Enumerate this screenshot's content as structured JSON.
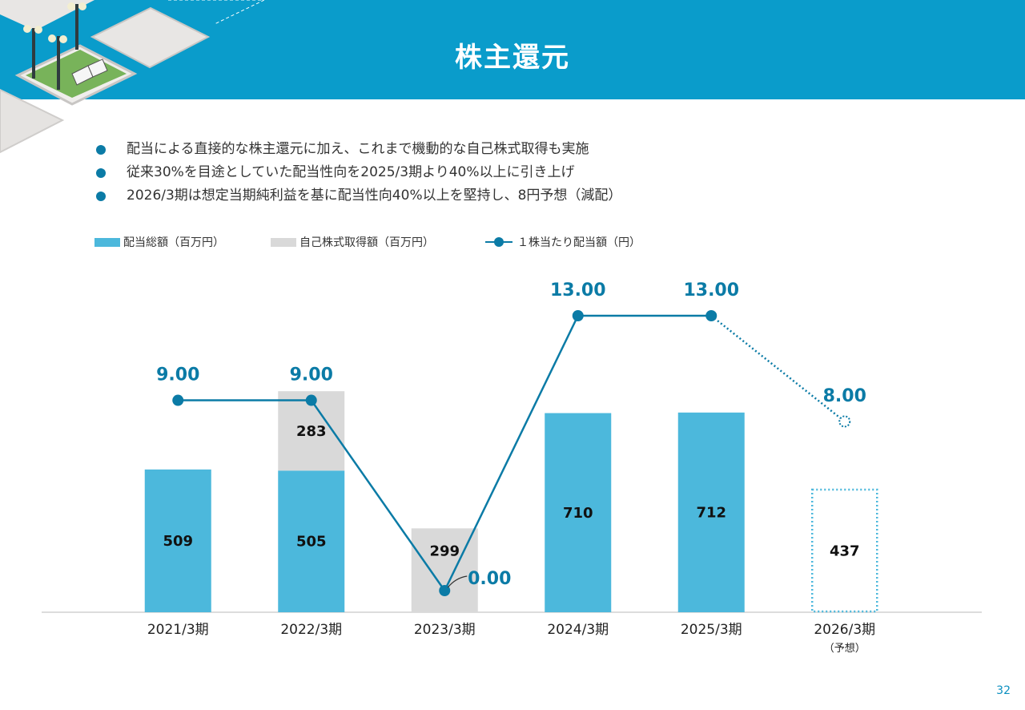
{
  "header": {
    "title": "株主還元"
  },
  "bullets": [
    "配当による直接的な株主還元に加え、これまで機動的な自己株式取得も実施",
    "従来30%を目途としていた配当性向を2025/3期より40%以上に引き上げ",
    "2026/3期は想定当期純利益を基に配当性向40%以上を堅持し、8円予想（減配）"
  ],
  "legend": {
    "dividend_total": "配当総額（百万円）",
    "buyback": "自己株式取得額（百万円）",
    "dps": "１株当たり配当額（円）"
  },
  "colors": {
    "header": "#0a9ccb",
    "dividend_bar": "#4cb8dc",
    "buyback_bar": "#d9d9d9",
    "dps_line": "#0b7ba6",
    "dps_label": "#0b7ba6"
  },
  "chart_data": {
    "type": "bar",
    "stacked": true,
    "categories": [
      "2021/3期",
      "2022/3期",
      "2023/3期",
      "2024/3期",
      "2025/3期",
      "2026/3期"
    ],
    "category_sublabels": [
      "",
      "",
      "",
      "",
      "",
      "（予想）"
    ],
    "series": [
      {
        "name": "配当総額（百万円）",
        "type": "bar",
        "values": [
          509,
          505,
          0,
          710,
          712,
          437
        ],
        "forecast_from_index": 5
      },
      {
        "name": "自己株式取得額（百万円）",
        "type": "bar",
        "values": [
          0,
          283,
          299,
          0,
          0,
          0
        ]
      },
      {
        "name": "１株当たり配当額（円）",
        "type": "line",
        "values": [
          9.0,
          9.0,
          0.0,
          13.0,
          13.0,
          8.0
        ],
        "value_labels": [
          "9.00",
          "9.00",
          "0.00",
          "13.00",
          "13.00",
          "8.00"
        ],
        "forecast_from_index": 5
      }
    ],
    "bar_value_labels": {
      "dividend": [
        "509",
        "505",
        "",
        "710",
        "712",
        "437"
      ],
      "buyback": [
        "",
        "283",
        "299",
        "",
        "",
        ""
      ]
    }
  },
  "page_number": "32"
}
